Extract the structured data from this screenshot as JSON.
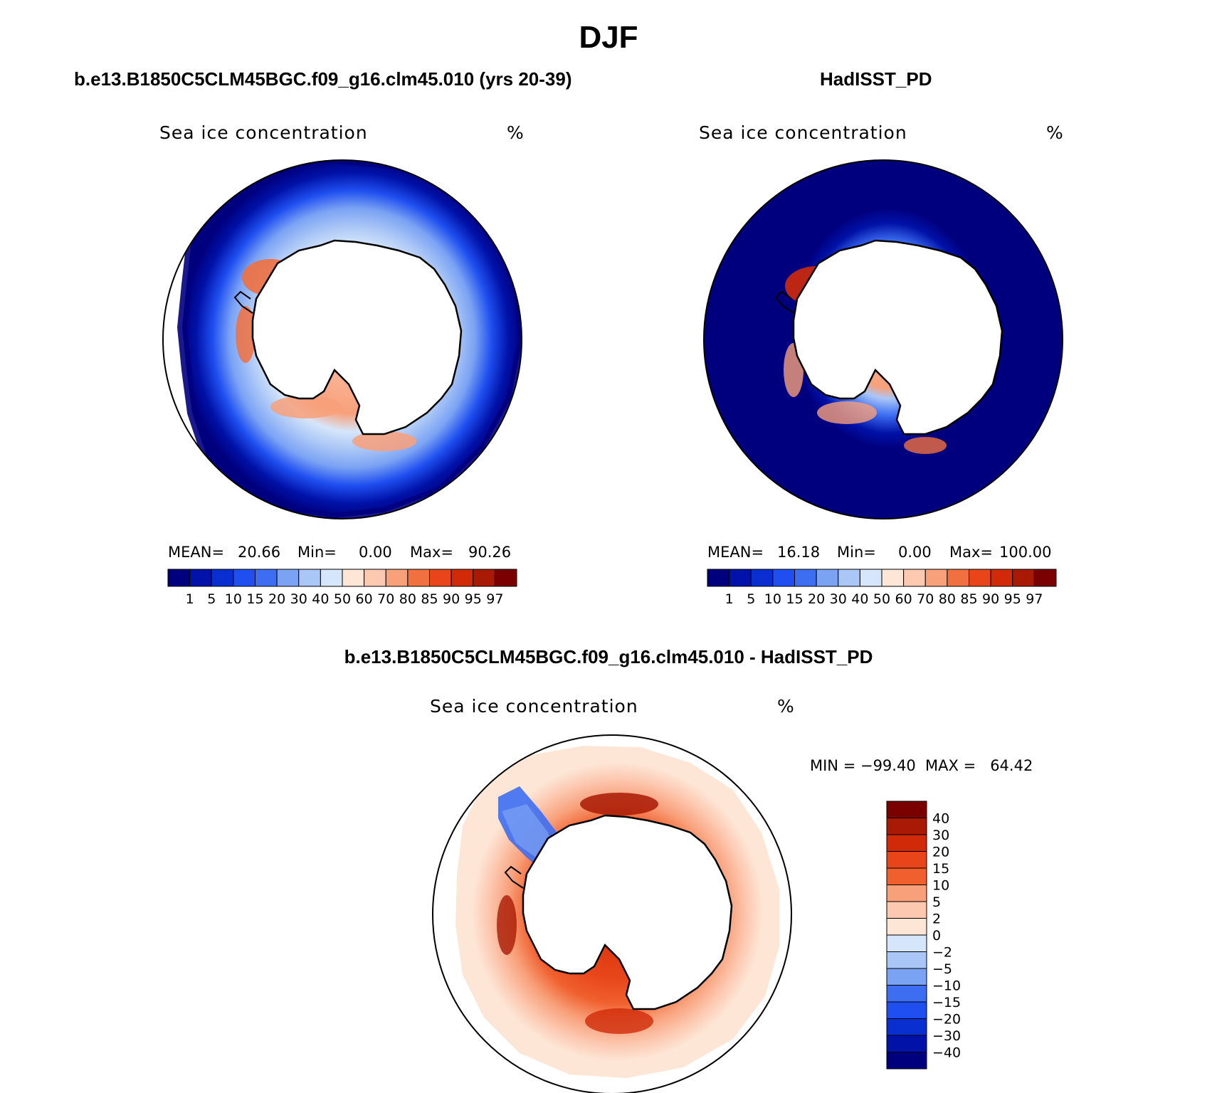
{
  "figure": {
    "title": "DJF",
    "panels": [
      {
        "id": "model",
        "subtitle": "b.e13.B1850C5CLM45BGC.f09_g16.clm45.010 (yrs 20-39)",
        "plot_title": "Sea ice concentration",
        "units": "%",
        "stats": {
          "mean_label": "MEAN=",
          "mean": "20.66",
          "min_label": "Min=",
          "min": "0.00",
          "max_label": "Max=",
          "max": "90.26"
        }
      },
      {
        "id": "obs",
        "subtitle": "HadISST_PD",
        "plot_title": "Sea ice concentration",
        "units": "%",
        "stats": {
          "mean_label": "MEAN=",
          "mean": "16.18",
          "min_label": "Min=",
          "min": "0.00",
          "max_label": "Max=",
          "max": "100.00"
        }
      },
      {
        "id": "diff",
        "subtitle": "b.e13.B1850C5CLM45BGC.f09_g16.clm45.010 - HadISST_PD",
        "plot_title": "Sea ice concentration",
        "units": "%",
        "stats_text": "MIN = −99.40  MAX =   64.42"
      }
    ]
  },
  "colorbars": {
    "concentration": {
      "orientation": "horizontal",
      "levels": [
        "1",
        "5",
        "10",
        "15",
        "20",
        "30",
        "40",
        "50",
        "60",
        "70",
        "80",
        "85",
        "90",
        "95",
        "97"
      ],
      "colors": [
        "#00007f",
        "#0012a8",
        "#0a2fd0",
        "#1f4ff0",
        "#3d6ef2",
        "#7ba3f4",
        "#aac6f6",
        "#d6e6fa",
        "#fde6d6",
        "#fcc8b0",
        "#f8a07a",
        "#f07040",
        "#e8461a",
        "#d02a08",
        "#a81a04",
        "#7a0000"
      ]
    },
    "difference": {
      "orientation": "vertical",
      "levels": [
        "40",
        "30",
        "20",
        "15",
        "10",
        "5",
        "2",
        "0",
        "−2",
        "−5",
        "−10",
        "−15",
        "−20",
        "−30",
        "−40"
      ],
      "colors": [
        "#7a0000",
        "#a81a04",
        "#d02a08",
        "#e8461a",
        "#f0602e",
        "#f8a07a",
        "#fcc8b0",
        "#fde6d6",
        "#d6e6fa",
        "#aac6f6",
        "#7ba3f4",
        "#3d6ef2",
        "#1f4ff0",
        "#0a2fd0",
        "#0012a8",
        "#00007f"
      ]
    }
  },
  "map": {
    "projection": "south-polar-stereographic",
    "ocean_fill_model": "#00008b",
    "ocean_fill_obs": "#00008b",
    "diff_background": "#fde6d6"
  }
}
